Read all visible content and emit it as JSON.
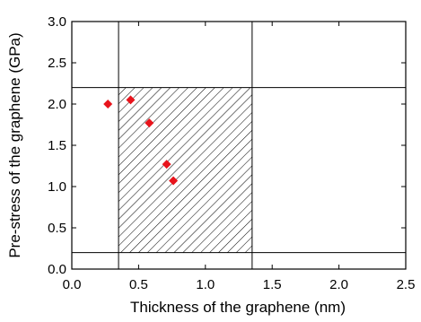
{
  "chart_data": {
    "type": "scatter",
    "xlabel": "Thickness of the graphene (nm)",
    "ylabel": "Pre-stress of the graphene (GPa)",
    "xlim": [
      0.0,
      2.5
    ],
    "ylim": [
      0.0,
      3.0
    ],
    "x_ticks": [
      0.0,
      0.5,
      1.0,
      1.5,
      2.0,
      2.5
    ],
    "y_ticks": [
      0.0,
      0.5,
      1.0,
      1.5,
      2.0,
      2.5,
      3.0
    ],
    "x_tick_labels": [
      "0.0",
      "0.5",
      "1.0",
      "1.5",
      "2.0",
      "2.5"
    ],
    "y_tick_labels": [
      "0.0",
      "0.5",
      "1.0",
      "1.5",
      "2.0",
      "2.5",
      "3.0"
    ],
    "grid": false,
    "reference_lines": {
      "vertical_x": [
        0.35,
        1.35
      ],
      "horizontal_y": [
        0.2,
        2.2
      ]
    },
    "shaded_region": {
      "x": [
        0.35,
        1.35
      ],
      "y": [
        0.2,
        2.2
      ],
      "pattern": "diagonal-hatch"
    },
    "series": [
      {
        "marker": "diamond",
        "color": "#e8141c",
        "points": [
          {
            "x": 0.27,
            "y": 2.0
          },
          {
            "x": 0.44,
            "y": 2.05
          },
          {
            "x": 0.58,
            "y": 1.77
          },
          {
            "x": 0.71,
            "y": 1.27
          },
          {
            "x": 0.76,
            "y": 1.07
          }
        ]
      }
    ]
  }
}
